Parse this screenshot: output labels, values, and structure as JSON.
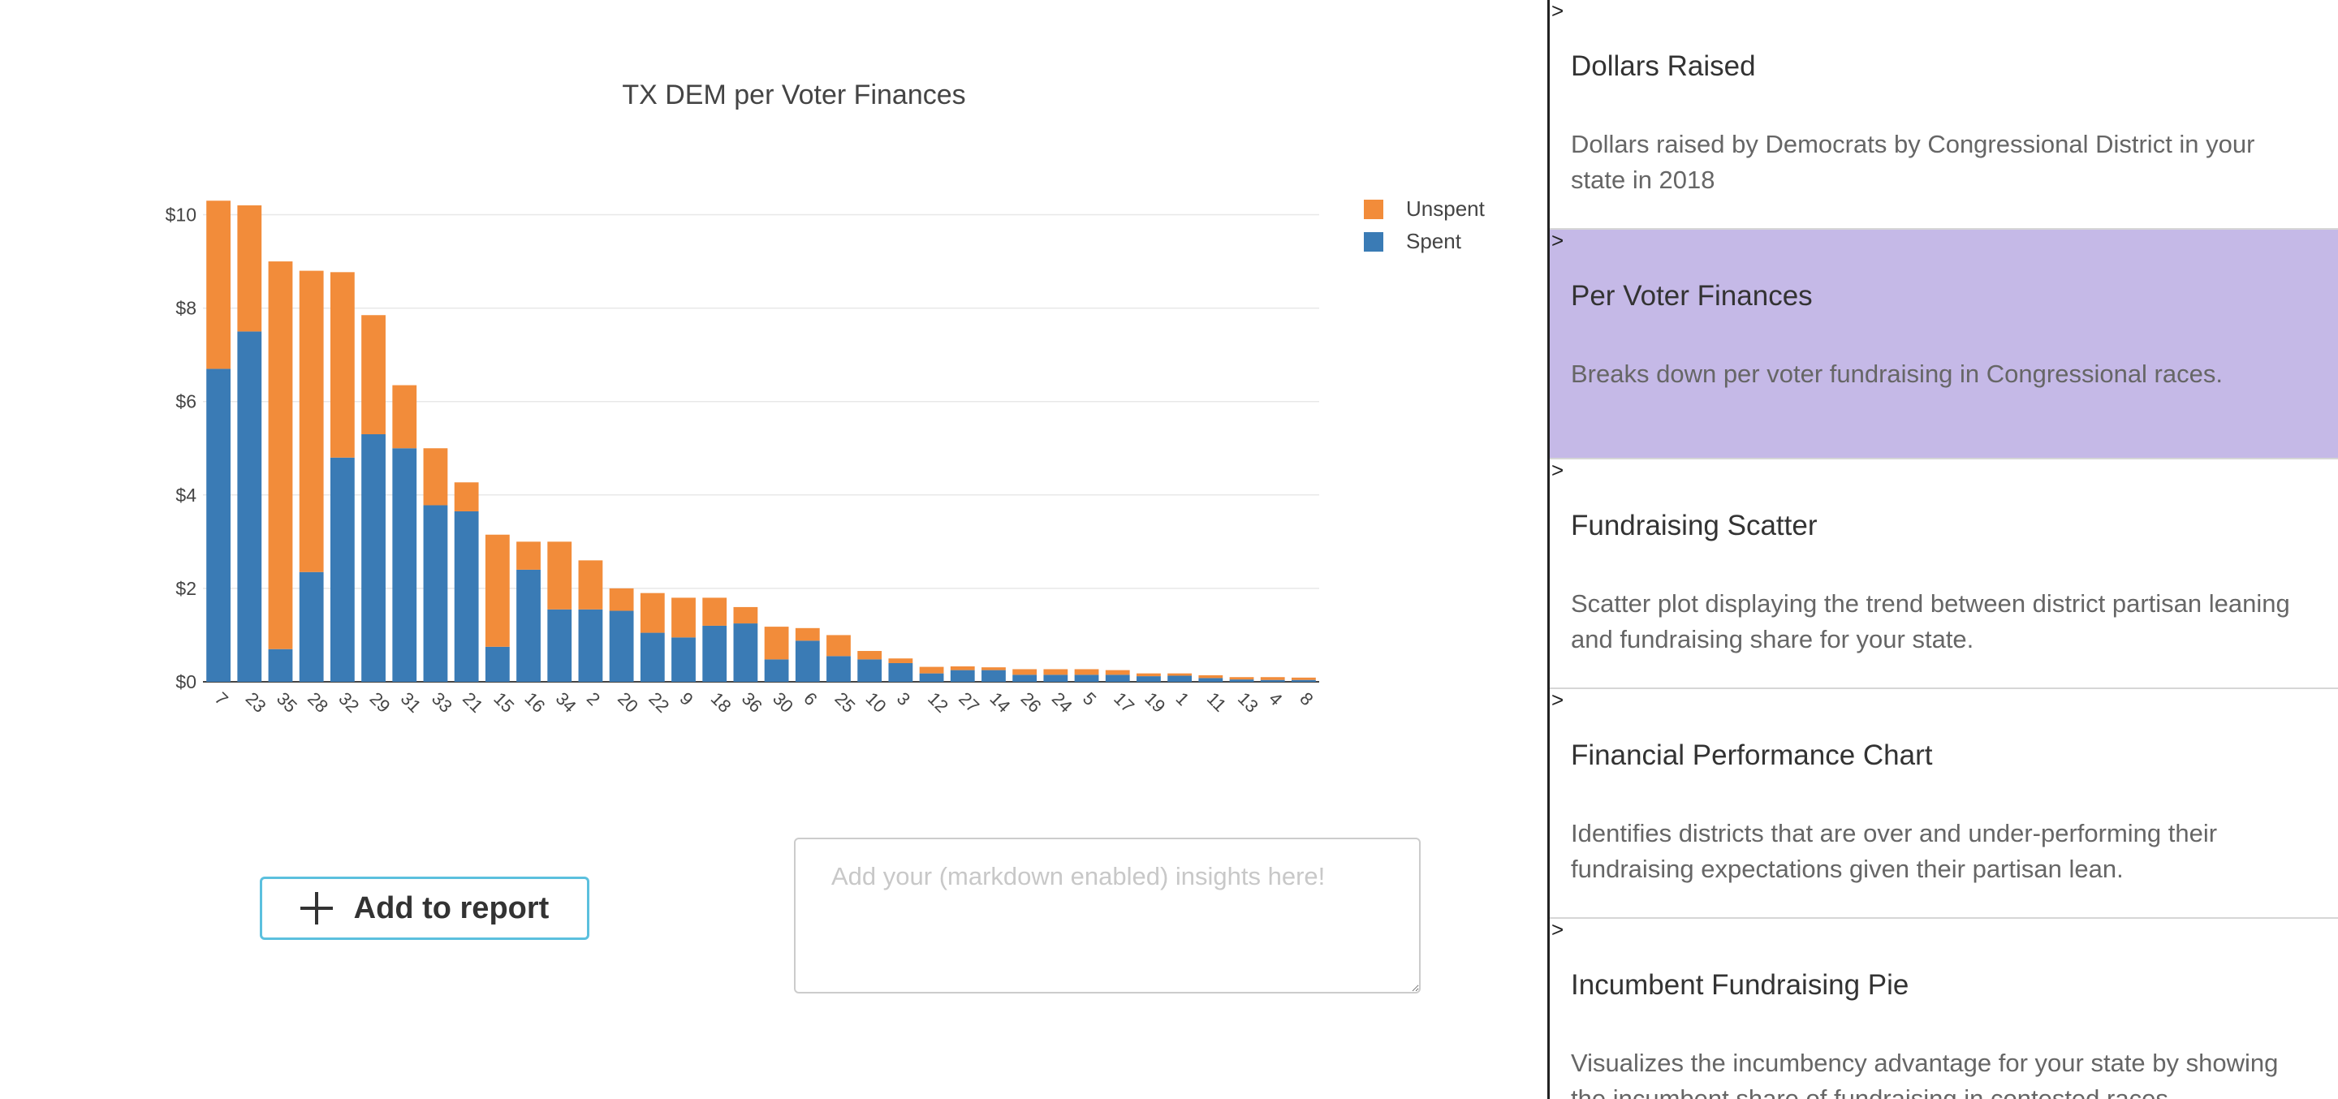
{
  "chart_data": {
    "type": "bar",
    "stacked": true,
    "title": "TX DEM per Voter Finances",
    "categories": [
      "7",
      "23",
      "35",
      "28",
      "32",
      "29",
      "31",
      "33",
      "21",
      "15",
      "16",
      "34",
      "2",
      "20",
      "22",
      "9",
      "18",
      "36",
      "30",
      "6",
      "25",
      "10",
      "3",
      "12",
      "27",
      "14",
      "26",
      "24",
      "5",
      "17",
      "19",
      "1",
      "11",
      "13",
      "4",
      "8"
    ],
    "series": [
      {
        "name": "Spent",
        "color": "#3a7bb5",
        "values": [
          6.7,
          7.5,
          0.7,
          2.35,
          4.8,
          5.3,
          5.0,
          3.78,
          3.65,
          0.75,
          2.4,
          1.55,
          1.55,
          1.52,
          1.05,
          0.95,
          1.2,
          1.25,
          0.48,
          0.88,
          0.55,
          0.48,
          0.4,
          0.18,
          0.25,
          0.25,
          0.15,
          0.15,
          0.15,
          0.15,
          0.12,
          0.13,
          0.08,
          0.05,
          0.04,
          0.04
        ]
      },
      {
        "name": "Unspent",
        "color": "#f28c3a",
        "values": [
          3.6,
          2.7,
          8.3,
          6.45,
          3.97,
          2.55,
          1.35,
          1.22,
          0.62,
          2.4,
          0.6,
          1.45,
          1.05,
          0.48,
          0.85,
          0.85,
          0.6,
          0.35,
          0.7,
          0.27,
          0.45,
          0.18,
          0.1,
          0.14,
          0.08,
          0.06,
          0.12,
          0.12,
          0.12,
          0.1,
          0.06,
          0.05,
          0.06,
          0.05,
          0.06,
          0.05
        ]
      }
    ],
    "y_tick_labels": [
      "$0",
      "$2",
      "$4",
      "$6",
      "$8",
      "$10"
    ],
    "ylim": [
      0,
      10.6
    ],
    "grid": true,
    "legend_position": "top-right",
    "legend_order": [
      "Unspent",
      "Spent"
    ]
  },
  "report": {
    "add_label": "Add to report",
    "insights_placeholder": "Add your (markdown enabled) insights here!",
    "insights_value": ""
  },
  "sidebar": {
    "caret": ">",
    "items": [
      {
        "title": "Dollars Raised",
        "description": "Dollars raised by Democrats by Congressional District in your state in 2018",
        "active": false
      },
      {
        "title": "Per Voter Finances",
        "description": "Breaks down per voter fundraising in Congressional races.",
        "active": true
      },
      {
        "title": "Fundraising Scatter",
        "description": "Scatter plot displaying the trend between district partisan leaning and fundraising share for your state.",
        "active": false
      },
      {
        "title": "Financial Performance Chart",
        "description": "Identifies districts that are over and under-performing their fundraising expectations given their partisan lean.",
        "active": false
      },
      {
        "title": "Incumbent Fundraising Pie",
        "description": "Visualizes the incumbency advantage for your state by showing the incumbent share of fundraising in contested races.",
        "active": false
      }
    ]
  }
}
